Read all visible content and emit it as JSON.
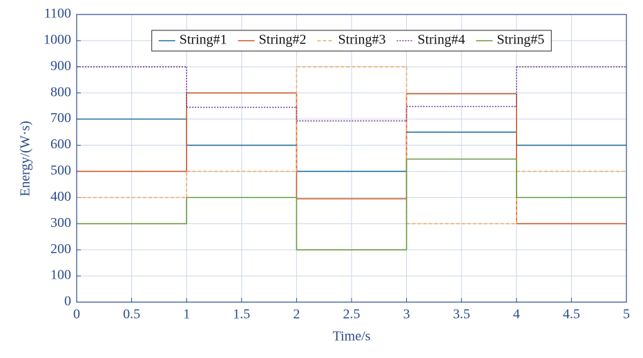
{
  "chart_data": {
    "type": "step",
    "x_label": "Time/s",
    "y_label": "Energy/(W·s)",
    "x": [
      0,
      1,
      2,
      3,
      4
    ],
    "series": [
      {
        "name": "String#1",
        "color": "#1f6f9f",
        "style": "solid",
        "values": [
          700,
          600,
          500,
          650,
          600
        ]
      },
      {
        "name": "String#2",
        "color": "#c9572b",
        "style": "solid",
        "values": [
          500,
          800,
          395,
          797,
          300
        ]
      },
      {
        "name": "String#3",
        "color": "#f0a865",
        "style": "dashed",
        "values": [
          400,
          500,
          900,
          300,
          500
        ]
      },
      {
        "name": "String#4",
        "color": "#7a3b8c",
        "style": "dotted",
        "values": [
          900,
          745,
          693,
          748,
          900
        ]
      },
      {
        "name": "String#5",
        "color": "#6b9a3e",
        "style": "solid",
        "values": [
          300,
          400,
          200,
          547,
          400
        ]
      }
    ],
    "xlim": [
      0,
      5
    ],
    "xticks": [
      0,
      0.5,
      1,
      1.5,
      2,
      2.5,
      3,
      3.5,
      4,
      4.5,
      5
    ],
    "ylim": [
      0,
      1100
    ],
    "yticks": [
      0,
      100,
      200,
      300,
      400,
      500,
      600,
      700,
      800,
      900,
      1000,
      1100
    ],
    "grid": true,
    "legend": "top"
  }
}
